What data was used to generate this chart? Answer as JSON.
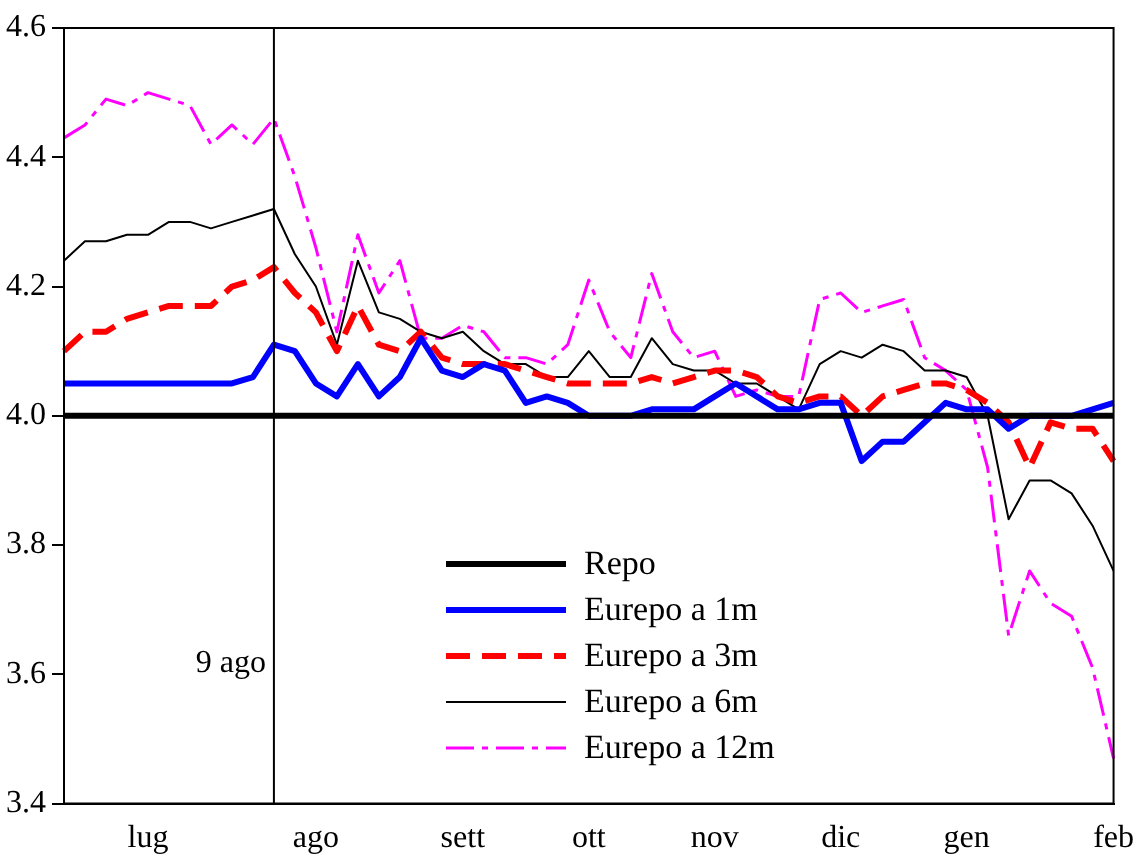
{
  "chart_data": {
    "type": "line",
    "categories": [
      null,
      null,
      null,
      null,
      "lug",
      null,
      null,
      null,
      null,
      null,
      null,
      null,
      "ago",
      null,
      null,
      null,
      null,
      null,
      null,
      "sett",
      null,
      null,
      null,
      null,
      null,
      "ott",
      null,
      null,
      null,
      null,
      null,
      "nov",
      null,
      null,
      null,
      null,
      null,
      "dic",
      null,
      null,
      null,
      null,
      null,
      "gen",
      null,
      null,
      null,
      null,
      null,
      null,
      "feb"
    ],
    "series": [
      {
        "name": "Repo",
        "color": "#000000",
        "line_style": "solid",
        "values": [
          4,
          4,
          4,
          4,
          4,
          4,
          4,
          4,
          4,
          4,
          4,
          4,
          4,
          4,
          4,
          4,
          4,
          4,
          4,
          4,
          4,
          4,
          4,
          4,
          4,
          4,
          4,
          4,
          4,
          4,
          4,
          4,
          4,
          4,
          4,
          4,
          4,
          4,
          4,
          4,
          4,
          4,
          4,
          4,
          4,
          4,
          4,
          4,
          4,
          4,
          4
        ]
      },
      {
        "name": "Eurepo a 1m",
        "color": "#0000ff",
        "line_style": "solid",
        "values": [
          4.05,
          4.05,
          4.05,
          4.05,
          4.05,
          4.05,
          4.05,
          4.05,
          4.05,
          4.06,
          4.11,
          4.1,
          4.05,
          4.03,
          4.08,
          4.03,
          4.06,
          4.12,
          4.07,
          4.06,
          4.08,
          4.07,
          4.02,
          4.03,
          4.02,
          4.0,
          4.0,
          4.0,
          4.01,
          4.01,
          4.01,
          4.03,
          4.05,
          4.03,
          4.01,
          4.01,
          4.02,
          4.02,
          3.93,
          3.96,
          3.96,
          3.99,
          4.02,
          4.01,
          4.01,
          3.98,
          4.0,
          4.0,
          4.0,
          4.01,
          4.02
        ]
      },
      {
        "name": "Eurepo a 3m",
        "color": "#ff0000",
        "line_style": "dashed",
        "values": [
          4.1,
          4.13,
          4.13,
          4.15,
          4.16,
          4.17,
          4.17,
          4.17,
          4.2,
          4.21,
          4.23,
          4.19,
          4.16,
          4.1,
          4.17,
          4.11,
          4.1,
          4.13,
          4.09,
          4.08,
          4.08,
          4.08,
          4.07,
          4.06,
          4.05,
          4.05,
          4.05,
          4.05,
          4.06,
          4.05,
          4.06,
          4.07,
          4.07,
          4.06,
          4.03,
          4.02,
          4.03,
          4.03,
          4.0,
          4.03,
          4.04,
          4.05,
          4.05,
          4.04,
          4.02,
          3.99,
          3.92,
          3.99,
          3.98,
          3.98,
          3.93
        ]
      },
      {
        "name": "Eurepo a 6m",
        "color": "#000000",
        "line_style": "solid",
        "values": [
          4.24,
          4.27,
          4.27,
          4.28,
          4.28,
          4.3,
          4.3,
          4.29,
          4.3,
          4.31,
          4.32,
          4.25,
          4.2,
          4.11,
          4.24,
          4.16,
          4.15,
          4.13,
          4.12,
          4.13,
          4.1,
          4.08,
          4.08,
          4.06,
          4.06,
          4.1,
          4.06,
          4.06,
          4.12,
          4.08,
          4.07,
          4.07,
          4.05,
          4.05,
          4.03,
          4.01,
          4.08,
          4.1,
          4.09,
          4.11,
          4.1,
          4.07,
          4.07,
          4.06,
          4.0,
          3.84,
          3.9,
          3.9,
          3.88,
          3.83,
          3.76
        ]
      },
      {
        "name": "Eurepo a 12m",
        "color": "#ff00ff",
        "line_style": "dashed",
        "values": [
          4.43,
          4.45,
          4.49,
          4.48,
          4.5,
          4.49,
          4.48,
          4.42,
          4.45,
          4.42,
          4.46,
          4.37,
          4.26,
          4.13,
          4.28,
          4.19,
          4.24,
          4.12,
          4.12,
          4.14,
          4.13,
          4.09,
          4.09,
          4.08,
          4.11,
          4.21,
          4.13,
          4.09,
          4.22,
          4.13,
          4.09,
          4.1,
          4.03,
          4.04,
          4.03,
          4.03,
          4.18,
          4.19,
          4.16,
          4.17,
          4.18,
          4.09,
          4.07,
          4.04,
          3.92,
          3.66,
          3.76,
          3.71,
          3.69,
          3.61,
          3.47
        ]
      }
    ],
    "ylim": [
      3.4,
      4.6
    ],
    "yticks": [
      3.4,
      3.6,
      3.8,
      {
        "value": 4,
        "label": "4.0"
      },
      4.2,
      4.4,
      4.6
    ],
    "annotations": [
      "9 ago"
    ],
    "grid": false,
    "legend": "bottom",
    "marker": "none"
  }
}
